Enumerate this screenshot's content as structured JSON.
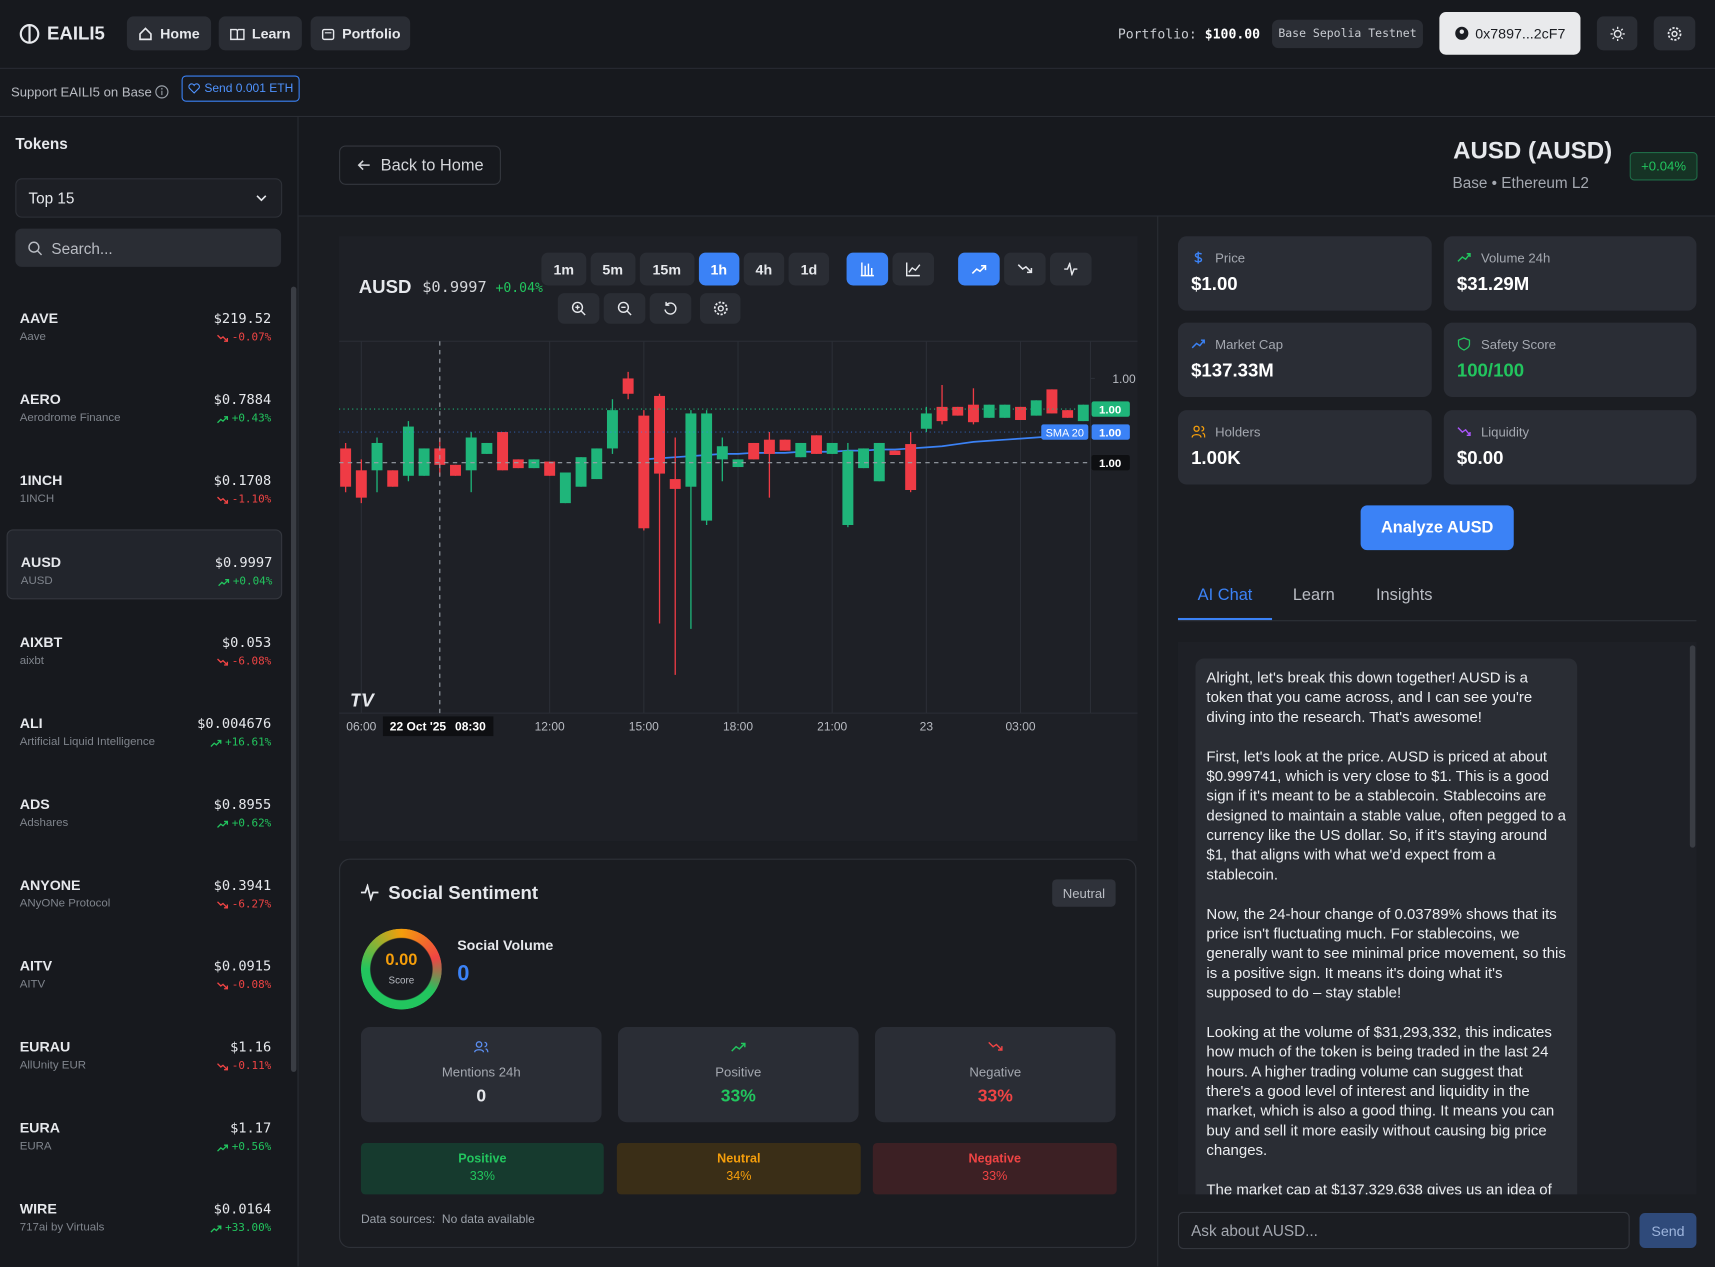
{
  "header": {
    "brand": "EAILI5",
    "nav": [
      "Home",
      "Learn",
      "Portfolio"
    ],
    "portfolio_label": "Portfolio:",
    "portfolio_value": "$100.00",
    "network": "Base Sepolia Testnet",
    "wallet": "0x7897...2cF7"
  },
  "support": {
    "text": "Support EAILI5 on Base",
    "button": "Send 0.001 ETH"
  },
  "sidebar": {
    "title": "Tokens",
    "filter": "Top 15",
    "search_placeholder": "Search...",
    "tokens": [
      {
        "symbol": "AAVE",
        "name": "Aave",
        "price": "$219.52",
        "change": "-0.07%"
      },
      {
        "symbol": "AERO",
        "name": "Aerodrome Finance",
        "price": "$0.7884",
        "change": "+0.43%"
      },
      {
        "symbol": "1INCH",
        "name": "1INCH",
        "price": "$0.1708",
        "change": "-1.10%"
      },
      {
        "symbol": "AUSD",
        "name": "AUSD",
        "price": "$0.9997",
        "change": "+0.04%",
        "selected": true
      },
      {
        "symbol": "AIXBT",
        "name": "aixbt",
        "price": "$0.053",
        "change": "-6.08%"
      },
      {
        "symbol": "ALI",
        "name": "Artificial Liquid Intelligence",
        "price": "$0.004676",
        "change": "+16.61%"
      },
      {
        "symbol": "ADS",
        "name": "Adshares",
        "price": "$0.8955",
        "change": "+0.62%"
      },
      {
        "symbol": "ANYONE",
        "name": "ANyONe Protocol",
        "price": "$0.3941",
        "change": "-6.27%"
      },
      {
        "symbol": "AITV",
        "name": "AITV",
        "price": "$0.0915",
        "change": "-0.08%"
      },
      {
        "symbol": "EURAU",
        "name": "AllUnity EUR",
        "price": "$1.16",
        "change": "-0.11%"
      },
      {
        "symbol": "EURA",
        "name": "EURA",
        "price": "$1.17",
        "change": "+0.56%"
      },
      {
        "symbol": "WIRE",
        "name": "717ai by Virtuals",
        "price": "$0.0164",
        "change": "+33.00%"
      }
    ]
  },
  "token": {
    "back": "Back to Home",
    "title": "AUSD (AUSD)",
    "network": "Base • Ethereum L2",
    "change": "+0.04%"
  },
  "chart_data": {
    "type": "candlestick",
    "symbol": "AUSD",
    "price": "$0.9997",
    "change": "+0.04%",
    "intervals": [
      "1m",
      "5m",
      "15m",
      "1h",
      "4h",
      "1d"
    ],
    "active_interval": "1h",
    "up_color": "#1fb57a",
    "down_color": "#ef3b45",
    "ylim": [
      0.9976,
      1.001
    ],
    "yticks": [
      {
        "value": 1.00066,
        "label": "1.00"
      }
    ],
    "categories": [
      null,
      "06:00",
      null,
      null,
      null,
      null,
      null,
      null,
      null,
      null,
      null,
      null,
      null,
      "12:00",
      null,
      null,
      null,
      null,
      null,
      "15:00",
      null,
      null,
      null,
      null,
      null,
      "18:00",
      null,
      null,
      null,
      null,
      null,
      "21:00",
      null,
      null,
      null,
      null,
      null,
      "23",
      null,
      null,
      null,
      null,
      null,
      "03:00",
      null,
      null,
      null,
      null
    ],
    "candles": [
      [
        1.00002,
        1.00007,
        0.99962,
        0.99967
      ],
      [
        0.99982,
        0.99992,
        0.99952,
        0.99957
      ],
      [
        0.99982,
        1.00012,
        0.99962,
        1.00007
      ],
      [
        0.99982,
        0.99982,
        0.99967,
        0.99967
      ],
      [
        0.99977,
        1.00027,
        0.99972,
        1.00022
      ],
      [
        0.99977,
        1.00002,
        0.99977,
        1.00002
      ],
      [
        1.00002,
        1.00012,
        0.99977,
        0.99987
      ],
      [
        0.99987,
        0.99987,
        0.99977,
        0.99977
      ],
      [
        0.99982,
        1.00017,
        0.99962,
        1.00012
      ],
      [
        0.99997,
        1.00007,
        0.99997,
        1.00007
      ],
      [
        1.00017,
        1.00017,
        0.99982,
        0.99982
      ],
      [
        0.99992,
        0.99992,
        0.99984,
        0.99984
      ],
      [
        0.99984,
        0.99992,
        0.99984,
        0.99992
      ],
      [
        0.9999,
        0.9999,
        0.99977,
        0.99977
      ],
      [
        0.99952,
        0.9998,
        0.99952,
        0.9998
      ],
      [
        0.99967,
        0.99994,
        0.99967,
        0.99994
      ],
      [
        0.99974,
        1.00002,
        0.99974,
        1.00002
      ],
      [
        1.00002,
        1.00047,
        0.99997,
        1.00037
      ],
      [
        1.00066,
        1.00072,
        1.00047,
        1.00052
      ],
      [
        1.00032,
        1.00037,
        0.99927,
        0.99929
      ],
      [
        1.0005,
        1.00052,
        0.99842,
        0.99979
      ],
      [
        0.99974,
        1.00012,
        0.99795,
        0.99965
      ],
      [
        0.99967,
        1.00037,
        0.99837,
        1.00034
      ],
      [
        0.99936,
        1.00037,
        0.99932,
        1.00034
      ],
      [
        0.99992,
        1.00012,
        0.99972,
        1.00004
      ],
      [
        0.99985,
        0.99992,
        0.99985,
        0.99992
      ],
      [
        1.00007,
        1.00007,
        0.99992,
        0.99992
      ],
      [
        1.0001,
        1.00017,
        0.99957,
        0.99997
      ],
      [
        1.0001,
        1.0001,
        1.0,
        1.0
      ],
      [
        0.99994,
        1.00007,
        0.99994,
        1.00007
      ],
      [
        1.00014,
        1.00014,
        0.99997,
        0.99997
      ],
      [
        0.99997,
        1.00007,
        0.99997,
        1.00007
      ],
      [
        0.99932,
        1.00007,
        0.9993,
        1.0
      ],
      [
        0.99984,
        1.00002,
        0.99984,
        1.00002
      ],
      [
        0.99972,
        1.00007,
        0.99972,
        1.00007
      ],
      [
        1.0,
        1.0,
        0.99996,
        0.99996
      ],
      [
        1.00006,
        1.00017,
        0.99962,
        0.99964
      ],
      [
        1.0002,
        1.0004,
        1.00017,
        1.00034
      ],
      [
        1.0004,
        1.0006,
        1.00024,
        1.00027
      ],
      [
        1.0004,
        1.0004,
        1.00032,
        1.00032
      ],
      [
        1.00042,
        1.00057,
        1.00024,
        1.00026
      ],
      [
        1.0003,
        1.00042,
        1.0003,
        1.00042
      ],
      [
        1.0003,
        1.00042,
        1.0003,
        1.00042
      ],
      [
        1.0004,
        1.0004,
        1.00028,
        1.00028
      ],
      [
        1.00032,
        1.00046,
        1.00032,
        1.00046
      ],
      [
        1.00056,
        1.00056,
        1.00034,
        1.00034
      ],
      [
        1.00037,
        1.00037,
        1.0003,
        1.0003
      ],
      [
        1.00027,
        1.00042,
        1.00027,
        1.00042
      ]
    ],
    "sma": {
      "name": "SMA 20",
      "color": "#3b82f6",
      "values": [
        null,
        null,
        null,
        null,
        null,
        null,
        null,
        null,
        null,
        null,
        null,
        null,
        null,
        null,
        null,
        null,
        null,
        null,
        null,
        0.99992,
        0.99993,
        0.99994,
        0.99995,
        0.99996,
        0.99997,
        0.99997,
        0.99998,
        0.99998,
        0.99998,
        0.99999,
        0.99999,
        0.99999,
        1.0,
        1.0,
        1.00001,
        1.00001,
        1.00002,
        1.00003,
        1.00004,
        1.00006,
        1.00008,
        1.00009,
        1.0001,
        1.00011,
        1.00012,
        1.00013,
        1.00014,
        1.00016
      ],
      "tag": {
        "value": 1.00017,
        "label": "1.00"
      }
    },
    "last_price": {
      "value": 1.00038,
      "label": "1.00"
    },
    "crosshair": {
      "candle": 6,
      "date": "22 Oct '25",
      "time": "08:30",
      "y": {
        "value": 0.99989,
        "label": "1.00"
      }
    }
  },
  "stats": [
    {
      "label": "Price",
      "value": "$1.00"
    },
    {
      "label": "Volume 24h",
      "value": "$31.29M"
    },
    {
      "label": "Market Cap",
      "value": "$137.33M"
    },
    {
      "label": "Safety Score",
      "value": "100/100"
    },
    {
      "label": "Holders",
      "value": "1.00K"
    },
    {
      "label": "Liquidity",
      "value": "$0.00"
    }
  ],
  "analyze_button": "Analyze AUSD",
  "chat": {
    "tabs": [
      "AI Chat",
      "Learn",
      "Insights"
    ],
    "active_tab": 0,
    "message": [
      "Alright, let's break this down together! AUSD is a token that you came across, and I can see you're diving into the research. That's awesome!",
      "First, let's look at the price. AUSD is priced at about $0.999741, which is very close to $1. This is a good sign if it's meant to be a stablecoin. Stablecoins are designed to maintain a stable value, often pegged to a currency like the US dollar. So, if it's staying around $1, that aligns with what we'd expect from a stablecoin.",
      "Now, the 24-hour change of 0.03789% shows that its price isn't fluctuating much. For stablecoins, we generally want to see minimal price movement, so this is a positive sign. It means it's doing what it's supposed to do – stay stable!",
      "Looking at the volume of $31,293,332, this indicates how much of the token is being traded in the last 24 hours. A higher trading volume can suggest that there's a good level of interest and liquidity in the market, which is also a good thing. It means you can buy and sell it more easily without causing big price changes.",
      "The market cap at $137,329,638 gives us an idea of"
    ],
    "input_placeholder": "Ask about AUSD...",
    "send": "Send"
  },
  "sentiment": {
    "title": "Social Sentiment",
    "badge": "Neutral",
    "score": "0.00",
    "score_label": "Score",
    "volume_label": "Social Volume",
    "volume": "0",
    "cards": [
      {
        "label": "Mentions 24h",
        "value": "0"
      },
      {
        "label": "Positive",
        "value": "33%"
      },
      {
        "label": "Negative",
        "value": "33%"
      }
    ],
    "bars": [
      {
        "label": "Positive",
        "value": "33%"
      },
      {
        "label": "Neutral",
        "value": "34%"
      },
      {
        "label": "Negative",
        "value": "33%"
      }
    ],
    "sources_label": "Data sources:",
    "sources": "No data available"
  }
}
